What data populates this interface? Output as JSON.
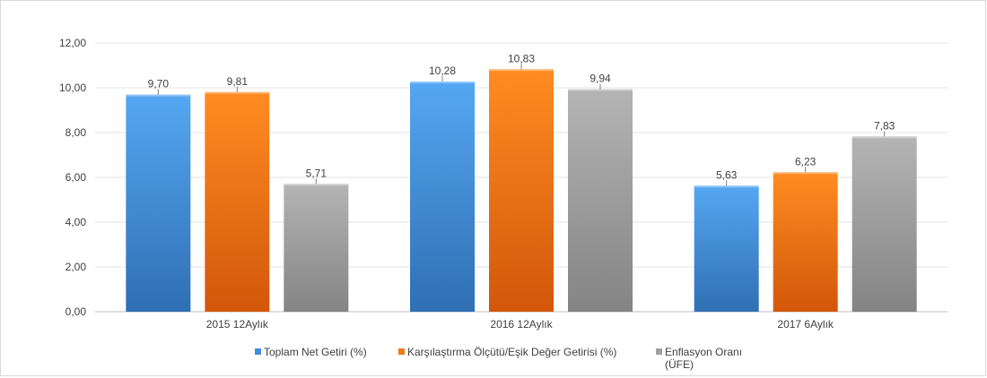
{
  "chart_data": {
    "type": "bar",
    "categories": [
      "2015 12Aylık",
      "2016 12Aylık",
      "2017 6Aylık"
    ],
    "series": [
      {
        "name": "Toplam Net Getiri (%)",
        "values": [
          9.7,
          10.28,
          5.63
        ],
        "labels": [
          "9,70",
          "10,28",
          "5,63"
        ],
        "color": "#3f8fd9"
      },
      {
        "name": "Karşılaştırma Ölçütü/Eşik Değer Getirisi (%)",
        "values": [
          9.81,
          10.83,
          6.23
        ],
        "labels": [
          "9,81",
          "10,83",
          "6,23"
        ],
        "color": "#f07a16"
      },
      {
        "name_lines": [
          "Enflasyon Oranı",
          "(ÜFE)"
        ],
        "values": [
          5.71,
          9.94,
          7.83
        ],
        "labels": [
          "5,71",
          "9,94",
          "7,83"
        ],
        "color": "#a0a0a0"
      }
    ],
    "yticks": [
      "0,00",
      "2,00",
      "4,00",
      "6,00",
      "8,00",
      "10,00",
      "12,00"
    ],
    "ylim": [
      0,
      12
    ],
    "grid": true,
    "legend": "bottom"
  }
}
